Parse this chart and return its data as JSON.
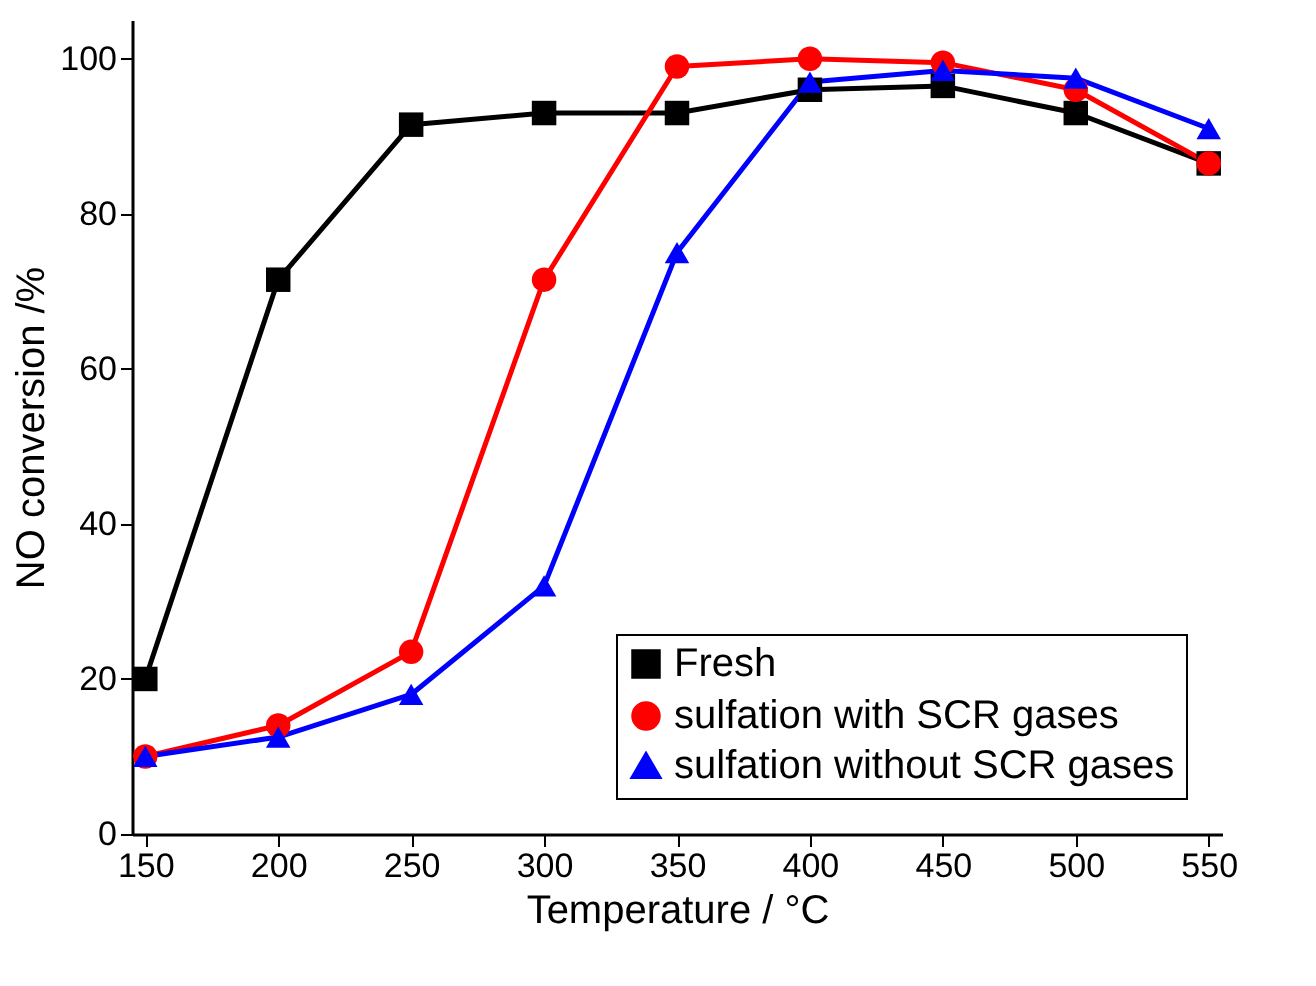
{
  "chart_data": {
    "type": "line",
    "xlabel": "Temperature / °C",
    "ylabel": "NO conversion /%",
    "x": [
      150,
      200,
      250,
      300,
      350,
      400,
      450,
      500,
      550
    ],
    "series": [
      {
        "name": "Fresh",
        "color": "#000000",
        "marker": "square",
        "values": [
          20,
          71.5,
          91.5,
          93,
          93,
          96,
          96.5,
          93,
          86.5
        ]
      },
      {
        "name": "sulfation with SCR gases",
        "color": "#ff0000",
        "marker": "circle",
        "values": [
          10,
          14,
          23.5,
          71.5,
          99,
          100,
          99.5,
          96,
          86.5
        ]
      },
      {
        "name": "sulfation without SCR gases",
        "color": "#0000ff",
        "marker": "triangle",
        "values": [
          10,
          12.5,
          18,
          32,
          75,
          97,
          98.5,
          97.5,
          91
        ]
      }
    ],
    "xlim": [
      145,
      555
    ],
    "xticks": [
      150,
      200,
      250,
      300,
      350,
      400,
      450,
      500,
      550
    ],
    "ylim": [
      0,
      105
    ],
    "yticks": [
      0,
      20,
      40,
      60,
      80,
      100
    ],
    "grid": false,
    "legend": "bottom right",
    "line_style": "solid"
  }
}
